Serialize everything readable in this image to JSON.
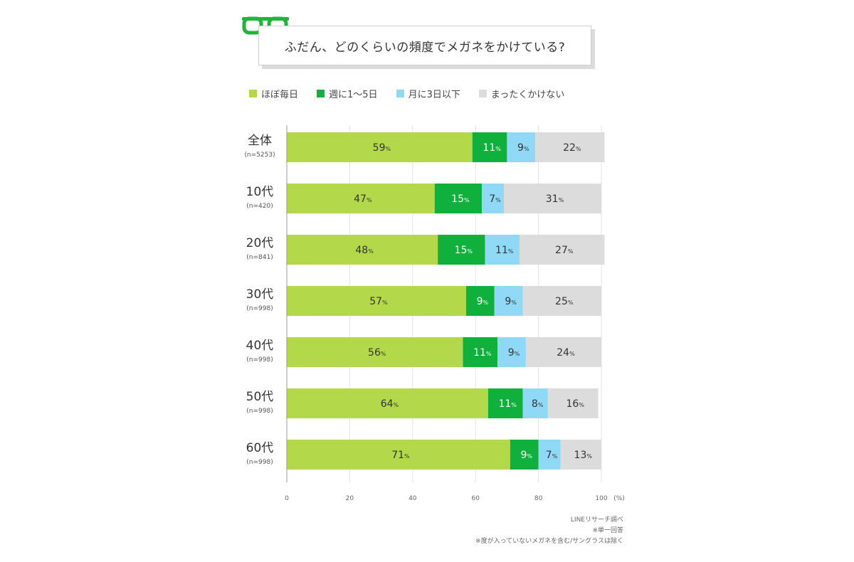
{
  "title": "ふだん、どのくらいの頻度でメガネをかけている?",
  "colors": {
    "almost_daily": "#b3d94a",
    "weekly": "#0fb13c",
    "monthly": "#8fd8f6",
    "never": "#dcdcdc",
    "glasses": "#1fb43a"
  },
  "chart_data": {
    "type": "bar",
    "orientation": "horizontal",
    "stacked": true,
    "categories": [
      "全体",
      "10代",
      "20代",
      "30代",
      "40代",
      "50代",
      "60代"
    ],
    "sample_sizes": [
      "(n=5253)",
      "(n=420)",
      "(n=841)",
      "(n=998)",
      "(n=998)",
      "(n=998)",
      "(n=998)"
    ],
    "series": [
      {
        "name": "ほぼ毎日",
        "values": [
          59,
          47,
          48,
          57,
          56,
          64,
          71
        ]
      },
      {
        "name": "週に1〜5日",
        "values": [
          11,
          15,
          15,
          9,
          11,
          11,
          9
        ]
      },
      {
        "name": "月に3日以下",
        "values": [
          9,
          7,
          11,
          9,
          9,
          8,
          7
        ]
      },
      {
        "name": "まったくかけない",
        "values": [
          22,
          31,
          27,
          25,
          24,
          16,
          13
        ]
      }
    ],
    "value_suffix": "%",
    "xlim": [
      0,
      100
    ],
    "xticks": [
      0,
      20,
      40,
      60,
      80,
      100
    ],
    "x_unit": "(%)",
    "legend_position": "top"
  },
  "notes": [
    "LINEリサーチ調べ",
    "※単一回答",
    "※度が入っていないメガネを含む/サングラスは除く"
  ]
}
